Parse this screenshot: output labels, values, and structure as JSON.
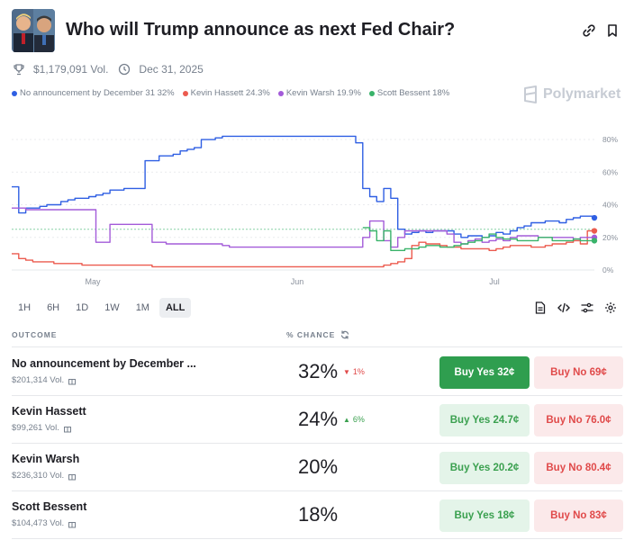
{
  "header": {
    "title": "Who will Trump announce as next Fed Chair?"
  },
  "meta": {
    "volume": "$1,179,091 Vol.",
    "end_date": "Dec 31, 2025"
  },
  "legend": [
    {
      "label": "No announcement by December 31 32%",
      "color": "#2f5fe3"
    },
    {
      "label": "Kevin Hassett 24.3%",
      "color": "#ec5b4f"
    },
    {
      "label": "Kevin Warsh 19.9%",
      "color": "#a35bd9"
    },
    {
      "label": "Scott Bessent 18%",
      "color": "#39b36a"
    }
  ],
  "brand": "Polymarket",
  "chart_data": {
    "type": "line",
    "x_ticks": [
      "May",
      "Jun",
      "Jul"
    ],
    "y_ticks": [
      "80%",
      "60%",
      "40%",
      "20%",
      "0%"
    ],
    "ylim": [
      0,
      85
    ],
    "grid": true,
    "series": [
      {
        "name": "No announcement by December 31",
        "color": "#2f5fe3",
        "values": [
          51,
          35,
          38,
          38,
          39,
          40,
          40,
          42,
          43,
          44,
          44,
          45,
          46,
          47,
          49,
          49,
          50,
          50,
          50,
          67,
          67,
          70,
          70,
          71,
          73,
          74,
          75,
          80,
          80,
          81,
          82,
          82,
          82,
          82,
          82,
          82,
          82,
          82,
          82,
          82,
          82,
          82,
          82,
          82,
          82,
          82,
          82,
          82,
          82,
          78,
          50,
          45,
          42,
          50,
          44,
          25,
          22,
          23,
          24,
          23,
          24,
          24,
          24,
          22,
          20,
          21,
          21,
          20,
          21,
          23,
          22,
          24,
          26,
          27,
          29,
          29,
          30,
          30,
          29,
          31,
          32,
          33,
          33,
          32
        ]
      },
      {
        "name": "Kevin Hassett",
        "color": "#ec5b4f",
        "values": [
          10,
          7,
          6,
          5,
          5,
          5,
          4,
          4,
          4,
          4,
          3,
          3,
          3,
          3,
          3,
          3,
          3,
          3,
          3,
          3,
          2,
          2,
          2,
          2,
          2,
          2,
          2,
          2,
          2,
          2,
          2,
          2,
          2,
          2,
          2,
          2,
          2,
          2,
          2,
          2,
          2,
          2,
          2,
          2,
          2,
          2,
          2,
          2,
          2,
          2,
          2,
          2,
          2,
          3,
          4,
          5,
          7,
          15,
          17,
          16,
          16,
          15,
          14,
          14,
          13,
          13,
          13,
          13,
          12,
          13,
          14,
          15,
          15,
          15,
          14,
          14,
          15,
          16,
          16,
          17,
          18,
          16,
          24,
          24
        ]
      },
      {
        "name": "Kevin Warsh",
        "color": "#a35bd9",
        "values": [
          38,
          38,
          37,
          37,
          37,
          37,
          37,
          37,
          37,
          37,
          37,
          37,
          17,
          17,
          28,
          28,
          28,
          28,
          28,
          28,
          17,
          17,
          16,
          16,
          16,
          16,
          16,
          16,
          16,
          16,
          15,
          14,
          14,
          14,
          14,
          14,
          14,
          14,
          14,
          14,
          14,
          14,
          14,
          14,
          14,
          14,
          14,
          14,
          14,
          14,
          20,
          30,
          30,
          18,
          14,
          20,
          24,
          24,
          24,
          24,
          24,
          24,
          22,
          17,
          16,
          18,
          19,
          17,
          18,
          19,
          18,
          20,
          21,
          21,
          21,
          20,
          20,
          20,
          20,
          20,
          19,
          20,
          20,
          20
        ]
      },
      {
        "name": "Scott Bessent",
        "color": "#39b36a",
        "values": [
          null,
          null,
          null,
          null,
          null,
          null,
          null,
          null,
          null,
          null,
          null,
          null,
          null,
          null,
          null,
          null,
          null,
          null,
          null,
          null,
          null,
          null,
          null,
          null,
          null,
          null,
          null,
          null,
          null,
          null,
          null,
          null,
          null,
          null,
          null,
          null,
          null,
          null,
          null,
          null,
          null,
          null,
          null,
          null,
          null,
          null,
          null,
          null,
          null,
          null,
          26,
          24,
          18,
          24,
          12,
          12,
          13,
          13,
          14,
          15,
          15,
          14,
          14,
          15,
          16,
          17,
          18,
          20,
          22,
          20,
          19,
          19,
          18,
          18,
          18,
          20,
          20,
          18,
          18,
          18,
          19,
          18,
          18,
          18
        ]
      }
    ],
    "reference_value": 25
  },
  "ranges": [
    "1H",
    "6H",
    "1D",
    "1W",
    "1M",
    "ALL"
  ],
  "active_range": "ALL",
  "columns": {
    "outcome": "OUTCOME",
    "chance": "% CHANCE"
  },
  "outcomes": [
    {
      "name": "No announcement by December ...",
      "volume": "$201,314 Vol.",
      "chance": "32%",
      "change": "1%",
      "change_dir": "down",
      "yes_label": "Buy Yes 32¢",
      "no_label": "Buy No 69¢",
      "yes_solid": true
    },
    {
      "name": "Kevin Hassett",
      "volume": "$99,261 Vol.",
      "chance": "24%",
      "change": "6%",
      "change_dir": "up",
      "yes_label": "Buy Yes 24.7¢",
      "no_label": "Buy No 76.0¢",
      "yes_solid": false
    },
    {
      "name": "Kevin Warsh",
      "volume": "$236,310 Vol.",
      "chance": "20%",
      "change": "",
      "change_dir": "",
      "yes_label": "Buy Yes 20.2¢",
      "no_label": "Buy No 80.4¢",
      "yes_solid": false
    },
    {
      "name": "Scott Bessent",
      "volume": "$104,473 Vol.",
      "chance": "18%",
      "change": "",
      "change_dir": "",
      "yes_label": "Buy Yes 18¢",
      "no_label": "Buy No 83¢",
      "yes_solid": false
    }
  ]
}
